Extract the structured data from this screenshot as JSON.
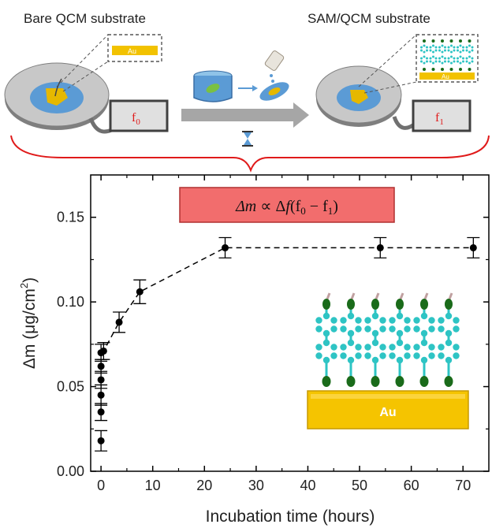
{
  "schematic": {
    "left_label": "Bare QCM substrate",
    "right_label": "SAM/QCM substrate",
    "left_freq": "f",
    "left_freq_sub": "0",
    "right_freq": "f",
    "right_freq_sub": "1",
    "au_label": "Au",
    "colors": {
      "brace": "#e01a1a",
      "arrow": "#a6a6a6",
      "gold": "#f2c200",
      "disk": "#9a9a9a",
      "water": "#5b9bd5"
    }
  },
  "formula": {
    "delta_m": "Δm",
    "prop": " ∝ Δ",
    "f": "f",
    "rest_open": "(f",
    "sub0": "0",
    "minus": " − f",
    "sub1": "1",
    "close": ")",
    "bg_color": "#f26d6d"
  },
  "inset": {
    "au_label": "Au",
    "colors": {
      "gold": "#f5c400",
      "ring": "#2ec4c4",
      "anchor": "#1a6b1a",
      "tail": "#c0a0a0"
    }
  },
  "chart_data": {
    "type": "scatter",
    "x": [
      0,
      0,
      0,
      0,
      0,
      0,
      0.5,
      3.5,
      7.5,
      24,
      54,
      72
    ],
    "y": [
      0.018,
      0.035,
      0.045,
      0.054,
      0.062,
      0.07,
      0.071,
      0.088,
      0.106,
      0.132,
      0.132,
      0.132
    ],
    "error": [
      0.006,
      0.005,
      0.006,
      0.005,
      0.004,
      0.005,
      0.005,
      0.006,
      0.007,
      0.006,
      0.006,
      0.006
    ],
    "xlabel": "Incubation time (hours)",
    "ylabel": "Δm (μg/cm",
    "ylabel_sup": "2",
    "ylabel_close": ")",
    "xlim": [
      -2,
      75
    ],
    "ylim": [
      0,
      0.175
    ],
    "xticks": [
      "0",
      "10",
      "20",
      "30",
      "40",
      "50",
      "60",
      "70"
    ],
    "yticks": [
      "0.00",
      "0.05",
      "0.10",
      "0.15"
    ],
    "line_style": "dashed",
    "grid": false,
    "marker_color": "#000000"
  }
}
